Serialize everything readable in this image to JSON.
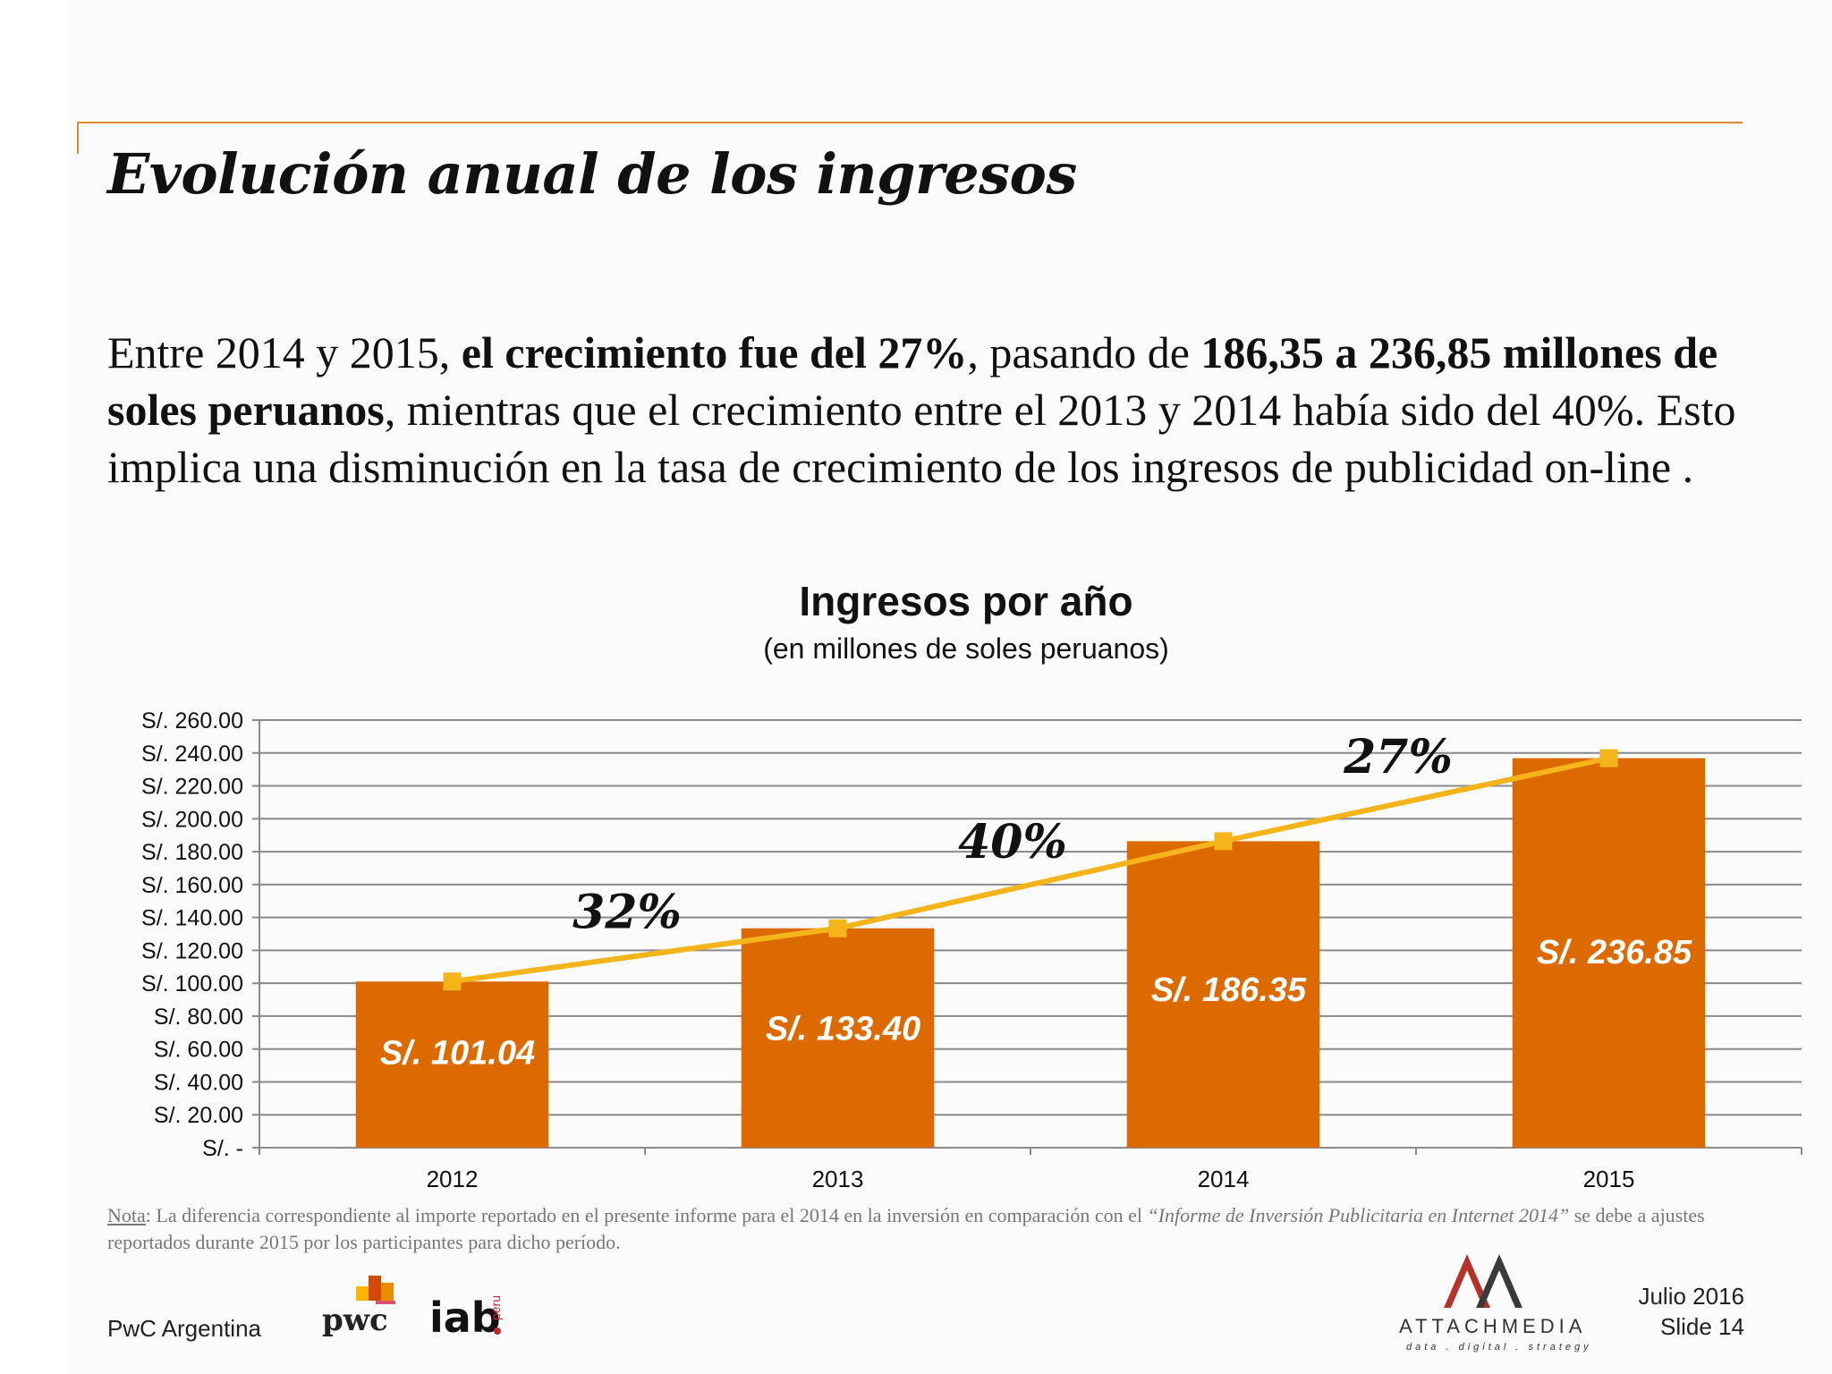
{
  "slide": {
    "title": "Evolución anual de los ingresos",
    "body": [
      {
        "text": "Entre 2014 y 2015, ",
        "bold": false
      },
      {
        "text": "el crecimiento fue del 27%",
        "bold": true
      },
      {
        "text": ", pasando de ",
        "bold": false
      },
      {
        "text": "186,35 a 236,85 millones de soles peruanos",
        "bold": true
      },
      {
        "text": ", mientras que el crecimiento entre el 2013 y 2014 había sido del 40%. Esto implica una disminución en la tasa de crecimiento de los ingresos de publicidad on-line .",
        "bold": false
      }
    ],
    "note": {
      "label": "Nota",
      "text_1": ": La diferencia correspondiente al importe reportado en el presente informe para el 2014 en la inversión en comparación con el ",
      "report_name": "“Informe de Inversión Publicitaria en Internet 2014”",
      "text_2": " se debe a ajustes reportados durante 2015 por los participantes para dicho período."
    }
  },
  "chart_data": {
    "type": "bar",
    "title": "Ingresos por año",
    "subtitle": "(en millones de soles peruanos)",
    "categories": [
      "2012",
      "2013",
      "2014",
      "2015"
    ],
    "values": [
      101.04,
      133.4,
      186.35,
      236.85
    ],
    "value_labels": [
      "S/. 101.04",
      "S/. 133.40",
      "S/. 186.35",
      "S/. 236.85"
    ],
    "ylim": [
      0,
      260
    ],
    "yticks": [
      0,
      20,
      40,
      60,
      80,
      100,
      120,
      140,
      160,
      180,
      200,
      220,
      240,
      260
    ],
    "ytick_labels": [
      "S/. -",
      "S/. 20.00",
      "S/. 40.00",
      "S/. 60.00",
      "S/. 80.00",
      "S/. 100.00",
      "S/. 120.00",
      "S/. 140.00",
      "S/. 160.00",
      "S/. 180.00",
      "S/. 200.00",
      "S/. 220.00",
      "S/. 240.00",
      "S/. 260.00"
    ],
    "grid": true,
    "overlay_line": {
      "values": [
        101.04,
        133.4,
        186.35,
        236.85
      ],
      "color": "#f4b41a"
    },
    "growth_labels": [
      "32%",
      "40%",
      "27%"
    ],
    "colors": {
      "bar": "#dc6a00",
      "line": "#f4b41a",
      "grid": "#8a8a8a"
    }
  },
  "footer": {
    "org": "PwC Argentina",
    "pwc_logo_text": "pwc",
    "iab_logo_text": "iab",
    "iab_sub": "peru",
    "partner_name": "ATTACHMEDIA",
    "partner_tagline": "data . digital . strategy",
    "date": "Julio 2016",
    "slide_number": "Slide 14"
  }
}
